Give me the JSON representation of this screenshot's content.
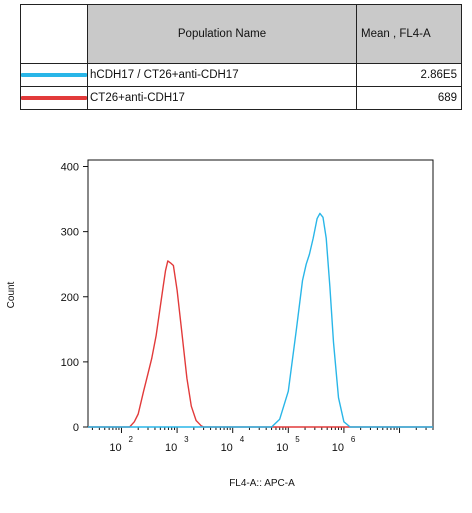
{
  "table": {
    "headers": [
      "",
      "Population Name",
      "Mean , FL4-A"
    ],
    "rows": [
      {
        "name": "hCDH17 / CT26+anti-CDH17",
        "mean": "2.86E5",
        "color": "#29b6e8"
      },
      {
        "name": "CT26+anti-CDH17",
        "mean": "689",
        "color": "#e23a3a"
      }
    ]
  },
  "chart_data": {
    "type": "line",
    "xlabel": "FL4-A:: APC-A",
    "ylabel": "Count",
    "xscale": "log",
    "xlim": [
      25,
      40000000
    ],
    "ylim": [
      0,
      410
    ],
    "yticks": [
      0,
      100,
      200,
      300,
      400
    ],
    "xticks": [
      {
        "value": 100,
        "label_base": "10",
        "label_exp": "2"
      },
      {
        "value": 1000,
        "label_base": "10",
        "label_exp": "3"
      },
      {
        "value": 10000,
        "label_base": "10",
        "label_exp": "4"
      },
      {
        "value": 100000,
        "label_base": "10",
        "label_exp": "5"
      },
      {
        "value": 1000000,
        "label_base": "10",
        "label_exp": "6"
      }
    ],
    "grid": false,
    "series": [
      {
        "name": "CT26+anti-CDH17",
        "color": "#e23a3a",
        "x": [
          25,
          140,
          170,
          200,
          250,
          300,
          350,
          420,
          500,
          560,
          620,
          680,
          760,
          860,
          1000,
          1200,
          1500,
          1800,
          2200,
          2700,
          3000,
          100000,
          800000,
          2000000,
          40000000
        ],
        "y": [
          0,
          0,
          8,
          20,
          55,
          82,
          105,
          140,
          185,
          215,
          240,
          255,
          252,
          248,
          210,
          150,
          75,
          32,
          10,
          2,
          0,
          0,
          0,
          0,
          0
        ]
      },
      {
        "name": "hCDH17 / CT26+anti-CDH17",
        "color": "#29b6e8",
        "x": [
          25,
          50000,
          70000,
          100000,
          140000,
          180000,
          210000,
          240000,
          280000,
          330000,
          370000,
          420000,
          480000,
          560000,
          650000,
          800000,
          1000000,
          1300000,
          40000000
        ],
        "y": [
          0,
          0,
          12,
          55,
          150,
          225,
          250,
          265,
          290,
          320,
          328,
          322,
          290,
          215,
          130,
          45,
          8,
          0,
          0
        ]
      }
    ]
  }
}
